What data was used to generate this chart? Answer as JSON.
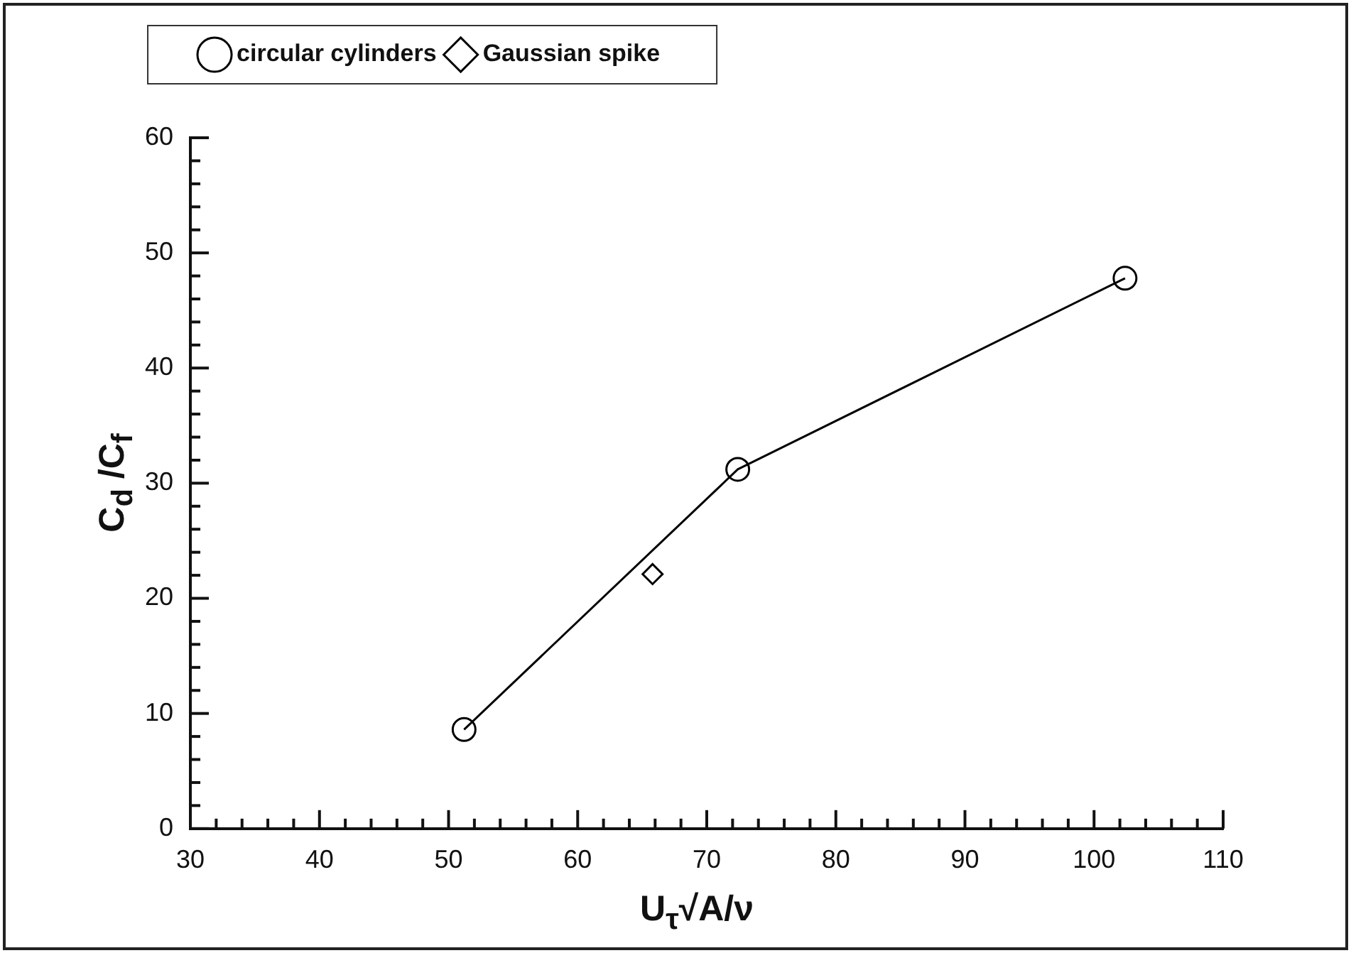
{
  "chart_data": {
    "type": "line",
    "xlabel": "U$_{τ}$√A/ν",
    "ylabel": "C$_{d}$ /C$_{f}$",
    "xlim": [
      30,
      110
    ],
    "xticks": [
      30,
      {
        "value": 32,
        "label": null
      },
      {
        "value": 34,
        "label": null
      },
      {
        "value": 36,
        "label": null
      },
      {
        "value": 38,
        "label": null
      },
      40,
      {
        "value": 42,
        "label": null
      },
      {
        "value": 44,
        "label": null
      },
      {
        "value": 46,
        "label": null
      },
      {
        "value": 48,
        "label": null
      },
      50,
      {
        "value": 52,
        "label": null
      },
      {
        "value": 54,
        "label": null
      },
      {
        "value": 56,
        "label": null
      },
      {
        "value": 58,
        "label": null
      },
      60,
      {
        "value": 62,
        "label": null
      },
      {
        "value": 64,
        "label": null
      },
      {
        "value": 66,
        "label": null
      },
      {
        "value": 68,
        "label": null
      },
      70,
      {
        "value": 72,
        "label": null
      },
      {
        "value": 74,
        "label": null
      },
      {
        "value": 76,
        "label": null
      },
      {
        "value": 78,
        "label": null
      },
      80,
      {
        "value": 82,
        "label": null
      },
      {
        "value": 84,
        "label": null
      },
      {
        "value": 86,
        "label": null
      },
      {
        "value": 88,
        "label": null
      },
      90,
      {
        "value": 92,
        "label": null
      },
      {
        "value": 94,
        "label": null
      },
      {
        "value": 96,
        "label": null
      },
      {
        "value": 98,
        "label": null
      },
      100,
      {
        "value": 102,
        "label": null
      },
      {
        "value": 104,
        "label": null
      },
      {
        "value": 106,
        "label": null
      },
      {
        "value": 108,
        "label": null
      },
      110
    ],
    "ylim": [
      0,
      60
    ],
    "yticks": [
      0,
      {
        "value": 2,
        "label": null
      },
      {
        "value": 4,
        "label": null
      },
      {
        "value": 6,
        "label": null
      },
      {
        "value": 8,
        "label": null
      },
      10,
      {
        "value": 12,
        "label": null
      },
      {
        "value": 14,
        "label": null
      },
      {
        "value": 16,
        "label": null
      },
      {
        "value": 18,
        "label": null
      },
      20,
      {
        "value": 22,
        "label": null
      },
      {
        "value": 24,
        "label": null
      },
      {
        "value": 26,
        "label": null
      },
      {
        "value": 28,
        "label": null
      },
      30,
      {
        "value": 32,
        "label": null
      },
      {
        "value": 34,
        "label": null
      },
      {
        "value": 36,
        "label": null
      },
      {
        "value": 38,
        "label": null
      },
      40,
      {
        "value": 42,
        "label": null
      },
      {
        "value": 44,
        "label": null
      },
      {
        "value": 46,
        "label": null
      },
      {
        "value": 48,
        "label": null
      },
      50,
      {
        "value": 52,
        "label": null
      },
      {
        "value": 54,
        "label": null
      },
      {
        "value": 56,
        "label": null
      },
      {
        "value": 58,
        "label": null
      },
      60
    ],
    "legend": "top left",
    "series": [
      {
        "name": "circular cylinders",
        "type": "line",
        "marker": "circle",
        "color": "#000000",
        "x": [
          51.2,
          72.4,
          102.4
        ],
        "values": [
          8.6,
          31.2,
          47.8
        ]
      },
      {
        "name": "Gaussian spike",
        "type": "scatter",
        "marker": "diamond",
        "color": "#000000",
        "x": [
          65.8
        ],
        "values": [
          22.1
        ]
      }
    ]
  }
}
